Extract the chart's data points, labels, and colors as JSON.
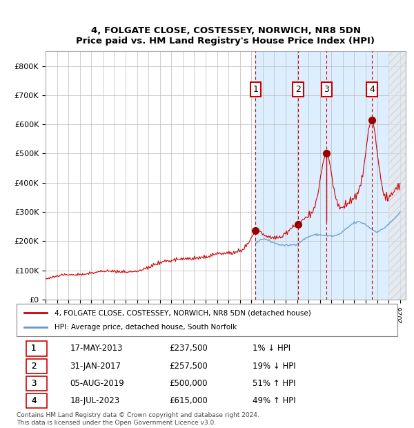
{
  "title1": "4, FOLGATE CLOSE, COSTESSEY, NORWICH, NR8 5DN",
  "title2": "Price paid vs. HM Land Registry's House Price Index (HPI)",
  "legend_line1": "4, FOLGATE CLOSE, COSTESSEY, NORWICH, NR8 5DN (detached house)",
  "legend_line2": "HPI: Average price, detached house, South Norfolk",
  "footer": "Contains HM Land Registry data © Crown copyright and database right 2024.\nThis data is licensed under the Open Government Licence v3.0.",
  "transactions": [
    {
      "num": 1,
      "date": "17-MAY-2013",
      "price": 237500,
      "pct": "1%",
      "dir": "↓",
      "year_x": 2013.37
    },
    {
      "num": 2,
      "date": "31-JAN-2017",
      "price": 257500,
      "pct": "19%",
      "dir": "↓",
      "year_x": 2017.08
    },
    {
      "num": 3,
      "date": "05-AUG-2019",
      "price": 500000,
      "pct": "51%",
      "dir": "↑",
      "year_x": 2019.59
    },
    {
      "num": 4,
      "date": "18-JUL-2023",
      "price": 615000,
      "pct": "49%",
      "dir": "↑",
      "year_x": 2023.54
    }
  ],
  "hpi_color": "#6699cc",
  "price_color": "#cc0000",
  "dot_color": "#990000",
  "vline_color": "#cc0000",
  "shade_color": "#ddeeff",
  "hatch_color": "#cccccc",
  "grid_color": "#bbbbbb",
  "ylim": [
    0,
    850000
  ],
  "xlim_start": 1995,
  "xlim_end": 2026.5
}
